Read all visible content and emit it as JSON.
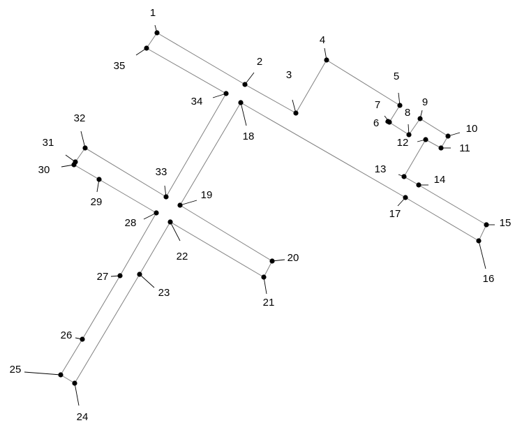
{
  "diagram": {
    "nodes": [
      {
        "id": 1,
        "label": "1"
      },
      {
        "id": 2,
        "label": "2"
      },
      {
        "id": 3,
        "label": "3"
      },
      {
        "id": 4,
        "label": "4"
      },
      {
        "id": 5,
        "label": "5"
      },
      {
        "id": 6,
        "label": "6"
      },
      {
        "id": 7,
        "label": "7"
      },
      {
        "id": 8,
        "label": "8"
      },
      {
        "id": 9,
        "label": "9"
      },
      {
        "id": 10,
        "label": "10"
      },
      {
        "id": 11,
        "label": "11"
      },
      {
        "id": 12,
        "label": "12"
      },
      {
        "id": 13,
        "label": "13"
      },
      {
        "id": 14,
        "label": "14"
      },
      {
        "id": 15,
        "label": "15"
      },
      {
        "id": 16,
        "label": "16"
      },
      {
        "id": 17,
        "label": "17"
      },
      {
        "id": 18,
        "label": "18"
      },
      {
        "id": 19,
        "label": "19"
      },
      {
        "id": 20,
        "label": "20"
      },
      {
        "id": 21,
        "label": "21"
      },
      {
        "id": 22,
        "label": "22"
      },
      {
        "id": 23,
        "label": "23"
      },
      {
        "id": 24,
        "label": "24"
      },
      {
        "id": 25,
        "label": "25"
      },
      {
        "id": 26,
        "label": "26"
      },
      {
        "id": 27,
        "label": "27"
      },
      {
        "id": 28,
        "label": "28"
      },
      {
        "id": 29,
        "label": "29"
      },
      {
        "id": 30,
        "label": "30"
      },
      {
        "id": 31,
        "label": "31"
      },
      {
        "id": 32,
        "label": "32"
      },
      {
        "id": 33,
        "label": "33"
      },
      {
        "id": 34,
        "label": "34"
      },
      {
        "id": 35,
        "label": "35"
      }
    ],
    "edges": [
      [
        1,
        2
      ],
      [
        2,
        3
      ],
      [
        3,
        4
      ],
      [
        4,
        5
      ],
      [
        5,
        7
      ],
      [
        7,
        6
      ],
      [
        6,
        8
      ],
      [
        8,
        9
      ],
      [
        9,
        10
      ],
      [
        10,
        11
      ],
      [
        11,
        12
      ],
      [
        12,
        13
      ],
      [
        13,
        14
      ],
      [
        14,
        15
      ],
      [
        15,
        16
      ],
      [
        16,
        17
      ],
      [
        17,
        18
      ],
      [
        18,
        19
      ],
      [
        19,
        20
      ],
      [
        20,
        21
      ],
      [
        21,
        22
      ],
      [
        22,
        23
      ],
      [
        23,
        24
      ],
      [
        24,
        25
      ],
      [
        25,
        26
      ],
      [
        26,
        27
      ],
      [
        27,
        28
      ],
      [
        28,
        29
      ],
      [
        29,
        30
      ],
      [
        30,
        31
      ],
      [
        31,
        32
      ],
      [
        32,
        33
      ],
      [
        33,
        34
      ],
      [
        34,
        35
      ],
      [
        35,
        1
      ]
    ],
    "colors": {
      "node": "#000000",
      "edge": "#808080",
      "label": "#000000",
      "background": "#ffffff"
    }
  }
}
